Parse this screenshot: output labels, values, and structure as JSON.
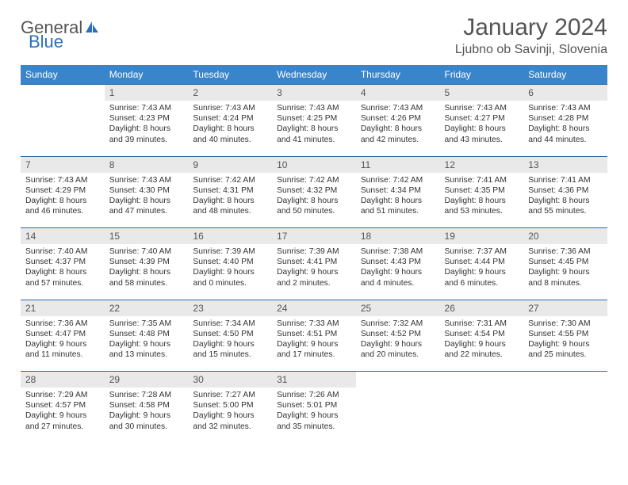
{
  "logo": {
    "text1": "General",
    "text2": "Blue"
  },
  "title": "January 2024",
  "location": "Ljubno ob Savinji, Slovenia",
  "colors": {
    "header_bg": "#3a85c9",
    "header_text": "#ffffff",
    "daynum_bg": "#e9e9e9",
    "border": "#2a6aa8",
    "text": "#333333",
    "title_text": "#555555"
  },
  "weekdays": [
    "Sunday",
    "Monday",
    "Tuesday",
    "Wednesday",
    "Thursday",
    "Friday",
    "Saturday"
  ],
  "start_offset": 1,
  "days": [
    {
      "n": 1,
      "sunrise": "7:43 AM",
      "sunset": "4:23 PM",
      "dl": "8 hours and 39 minutes."
    },
    {
      "n": 2,
      "sunrise": "7:43 AM",
      "sunset": "4:24 PM",
      "dl": "8 hours and 40 minutes."
    },
    {
      "n": 3,
      "sunrise": "7:43 AM",
      "sunset": "4:25 PM",
      "dl": "8 hours and 41 minutes."
    },
    {
      "n": 4,
      "sunrise": "7:43 AM",
      "sunset": "4:26 PM",
      "dl": "8 hours and 42 minutes."
    },
    {
      "n": 5,
      "sunrise": "7:43 AM",
      "sunset": "4:27 PM",
      "dl": "8 hours and 43 minutes."
    },
    {
      "n": 6,
      "sunrise": "7:43 AM",
      "sunset": "4:28 PM",
      "dl": "8 hours and 44 minutes."
    },
    {
      "n": 7,
      "sunrise": "7:43 AM",
      "sunset": "4:29 PM",
      "dl": "8 hours and 46 minutes."
    },
    {
      "n": 8,
      "sunrise": "7:43 AM",
      "sunset": "4:30 PM",
      "dl": "8 hours and 47 minutes."
    },
    {
      "n": 9,
      "sunrise": "7:42 AM",
      "sunset": "4:31 PM",
      "dl": "8 hours and 48 minutes."
    },
    {
      "n": 10,
      "sunrise": "7:42 AM",
      "sunset": "4:32 PM",
      "dl": "8 hours and 50 minutes."
    },
    {
      "n": 11,
      "sunrise": "7:42 AM",
      "sunset": "4:34 PM",
      "dl": "8 hours and 51 minutes."
    },
    {
      "n": 12,
      "sunrise": "7:41 AM",
      "sunset": "4:35 PM",
      "dl": "8 hours and 53 minutes."
    },
    {
      "n": 13,
      "sunrise": "7:41 AM",
      "sunset": "4:36 PM",
      "dl": "8 hours and 55 minutes."
    },
    {
      "n": 14,
      "sunrise": "7:40 AM",
      "sunset": "4:37 PM",
      "dl": "8 hours and 57 minutes."
    },
    {
      "n": 15,
      "sunrise": "7:40 AM",
      "sunset": "4:39 PM",
      "dl": "8 hours and 58 minutes."
    },
    {
      "n": 16,
      "sunrise": "7:39 AM",
      "sunset": "4:40 PM",
      "dl": "9 hours and 0 minutes."
    },
    {
      "n": 17,
      "sunrise": "7:39 AM",
      "sunset": "4:41 PM",
      "dl": "9 hours and 2 minutes."
    },
    {
      "n": 18,
      "sunrise": "7:38 AM",
      "sunset": "4:43 PM",
      "dl": "9 hours and 4 minutes."
    },
    {
      "n": 19,
      "sunrise": "7:37 AM",
      "sunset": "4:44 PM",
      "dl": "9 hours and 6 minutes."
    },
    {
      "n": 20,
      "sunrise": "7:36 AM",
      "sunset": "4:45 PM",
      "dl": "9 hours and 8 minutes."
    },
    {
      "n": 21,
      "sunrise": "7:36 AM",
      "sunset": "4:47 PM",
      "dl": "9 hours and 11 minutes."
    },
    {
      "n": 22,
      "sunrise": "7:35 AM",
      "sunset": "4:48 PM",
      "dl": "9 hours and 13 minutes."
    },
    {
      "n": 23,
      "sunrise": "7:34 AM",
      "sunset": "4:50 PM",
      "dl": "9 hours and 15 minutes."
    },
    {
      "n": 24,
      "sunrise": "7:33 AM",
      "sunset": "4:51 PM",
      "dl": "9 hours and 17 minutes."
    },
    {
      "n": 25,
      "sunrise": "7:32 AM",
      "sunset": "4:52 PM",
      "dl": "9 hours and 20 minutes."
    },
    {
      "n": 26,
      "sunrise": "7:31 AM",
      "sunset": "4:54 PM",
      "dl": "9 hours and 22 minutes."
    },
    {
      "n": 27,
      "sunrise": "7:30 AM",
      "sunset": "4:55 PM",
      "dl": "9 hours and 25 minutes."
    },
    {
      "n": 28,
      "sunrise": "7:29 AM",
      "sunset": "4:57 PM",
      "dl": "9 hours and 27 minutes."
    },
    {
      "n": 29,
      "sunrise": "7:28 AM",
      "sunset": "4:58 PM",
      "dl": "9 hours and 30 minutes."
    },
    {
      "n": 30,
      "sunrise": "7:27 AM",
      "sunset": "5:00 PM",
      "dl": "9 hours and 32 minutes."
    },
    {
      "n": 31,
      "sunrise": "7:26 AM",
      "sunset": "5:01 PM",
      "dl": "9 hours and 35 minutes."
    }
  ],
  "labels": {
    "sunrise": "Sunrise:",
    "sunset": "Sunset:",
    "daylight": "Daylight:"
  }
}
